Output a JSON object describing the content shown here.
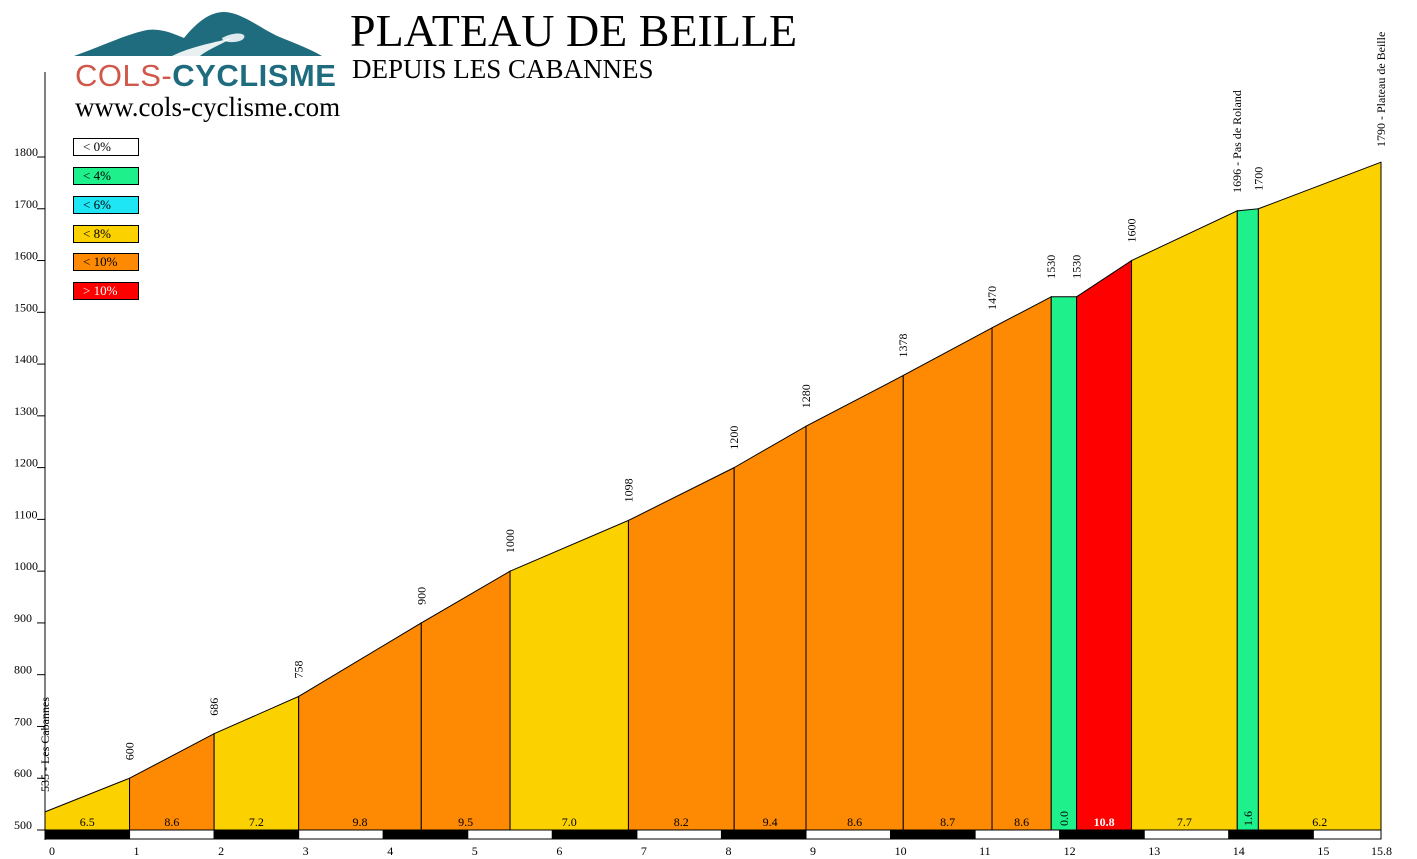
{
  "header": {
    "logo_part1": "COLS-",
    "logo_part2": "CYCLISME",
    "title": "PLATEAU DE BEILLE",
    "subtitle": "DEPUIS LES CABANNES",
    "website": "www.cols-cyclisme.com"
  },
  "legend": [
    {
      "label": "< 0%",
      "color": "#ffffff",
      "text_color": "#000000"
    },
    {
      "label": "< 4%",
      "color": "#1ef08c",
      "text_color": "#000000"
    },
    {
      "label": "< 6%",
      "color": "#1ee6f5",
      "text_color": "#000000"
    },
    {
      "label": "< 8%",
      "color": "#fcd100",
      "text_color": "#000000"
    },
    {
      "label": "< 10%",
      "color": "#fd8a02",
      "text_color": "#000000"
    },
    {
      "label": "> 10%",
      "color": "#ff0000",
      "text_color": "#ffffff"
    }
  ],
  "chart_data": {
    "type": "area",
    "title": "PLATEAU DE BEILLE",
    "subtitle": "DEPUIS LES CABANNES",
    "xlabel": "",
    "ylabel": "",
    "xlim": [
      0,
      15.8
    ],
    "ylim": [
      500,
      1800
    ],
    "y_ticks": [
      500,
      600,
      700,
      800,
      900,
      1000,
      1100,
      1200,
      1300,
      1400,
      1500,
      1600,
      1700,
      1800
    ],
    "x_ticks": [
      "0",
      "1",
      "2",
      "3",
      "4",
      "5",
      "6",
      "7",
      "8",
      "9",
      "10",
      "11",
      "12",
      "13",
      "14",
      "15",
      "15.8"
    ],
    "profile": [
      {
        "x": 0,
        "y": 535,
        "label": "535 - Les Cabannes"
      },
      {
        "x": 1.0,
        "y": 600,
        "label": "600"
      },
      {
        "x": 2.0,
        "y": 686,
        "label": "686"
      },
      {
        "x": 3.0,
        "y": 758,
        "label": "758"
      },
      {
        "x": 4.45,
        "y": 900,
        "label": "900"
      },
      {
        "x": 5.5,
        "y": 1000,
        "label": "1000"
      },
      {
        "x": 6.9,
        "y": 1098,
        "label": "1098"
      },
      {
        "x": 8.15,
        "y": 1200,
        "label": "1200"
      },
      {
        "x": 9.0,
        "y": 1280,
        "label": "1280"
      },
      {
        "x": 10.15,
        "y": 1378,
        "label": "1378"
      },
      {
        "x": 11.2,
        "y": 1470,
        "label": "1470"
      },
      {
        "x": 11.9,
        "y": 1530,
        "label": "1530"
      },
      {
        "x": 12.2,
        "y": 1530,
        "label": "1530"
      },
      {
        "x": 12.85,
        "y": 1600,
        "label": "1600"
      },
      {
        "x": 14.1,
        "y": 1696,
        "label": "1696 - Pas de Roland"
      },
      {
        "x": 14.35,
        "y": 1700,
        "label": "1700"
      },
      {
        "x": 15.8,
        "y": 1790,
        "label": "1790 - Plateau de Beille"
      }
    ],
    "segments": [
      {
        "gradient": "6.5",
        "category": "< 8%"
      },
      {
        "gradient": "8.6",
        "category": "< 10%"
      },
      {
        "gradient": "7.2",
        "category": "< 8%"
      },
      {
        "gradient": "9.8",
        "category": "< 10%"
      },
      {
        "gradient": "9.5",
        "category": "< 10%"
      },
      {
        "gradient": "7.0",
        "category": "< 8%"
      },
      {
        "gradient": "8.2",
        "category": "< 10%"
      },
      {
        "gradient": "9.4",
        "category": "< 10%"
      },
      {
        "gradient": "8.6",
        "category": "< 10%"
      },
      {
        "gradient": "8.7",
        "category": "< 10%"
      },
      {
        "gradient": "8.6",
        "category": "< 10%"
      },
      {
        "gradient": "0.0",
        "category": "< 4%"
      },
      {
        "gradient": "10.8",
        "category": "> 10%"
      },
      {
        "gradient": "7.7",
        "category": "< 8%"
      },
      {
        "gradient": "1.6",
        "category": "< 4%"
      },
      {
        "gradient": "6.2",
        "category": "< 8%"
      }
    ]
  }
}
